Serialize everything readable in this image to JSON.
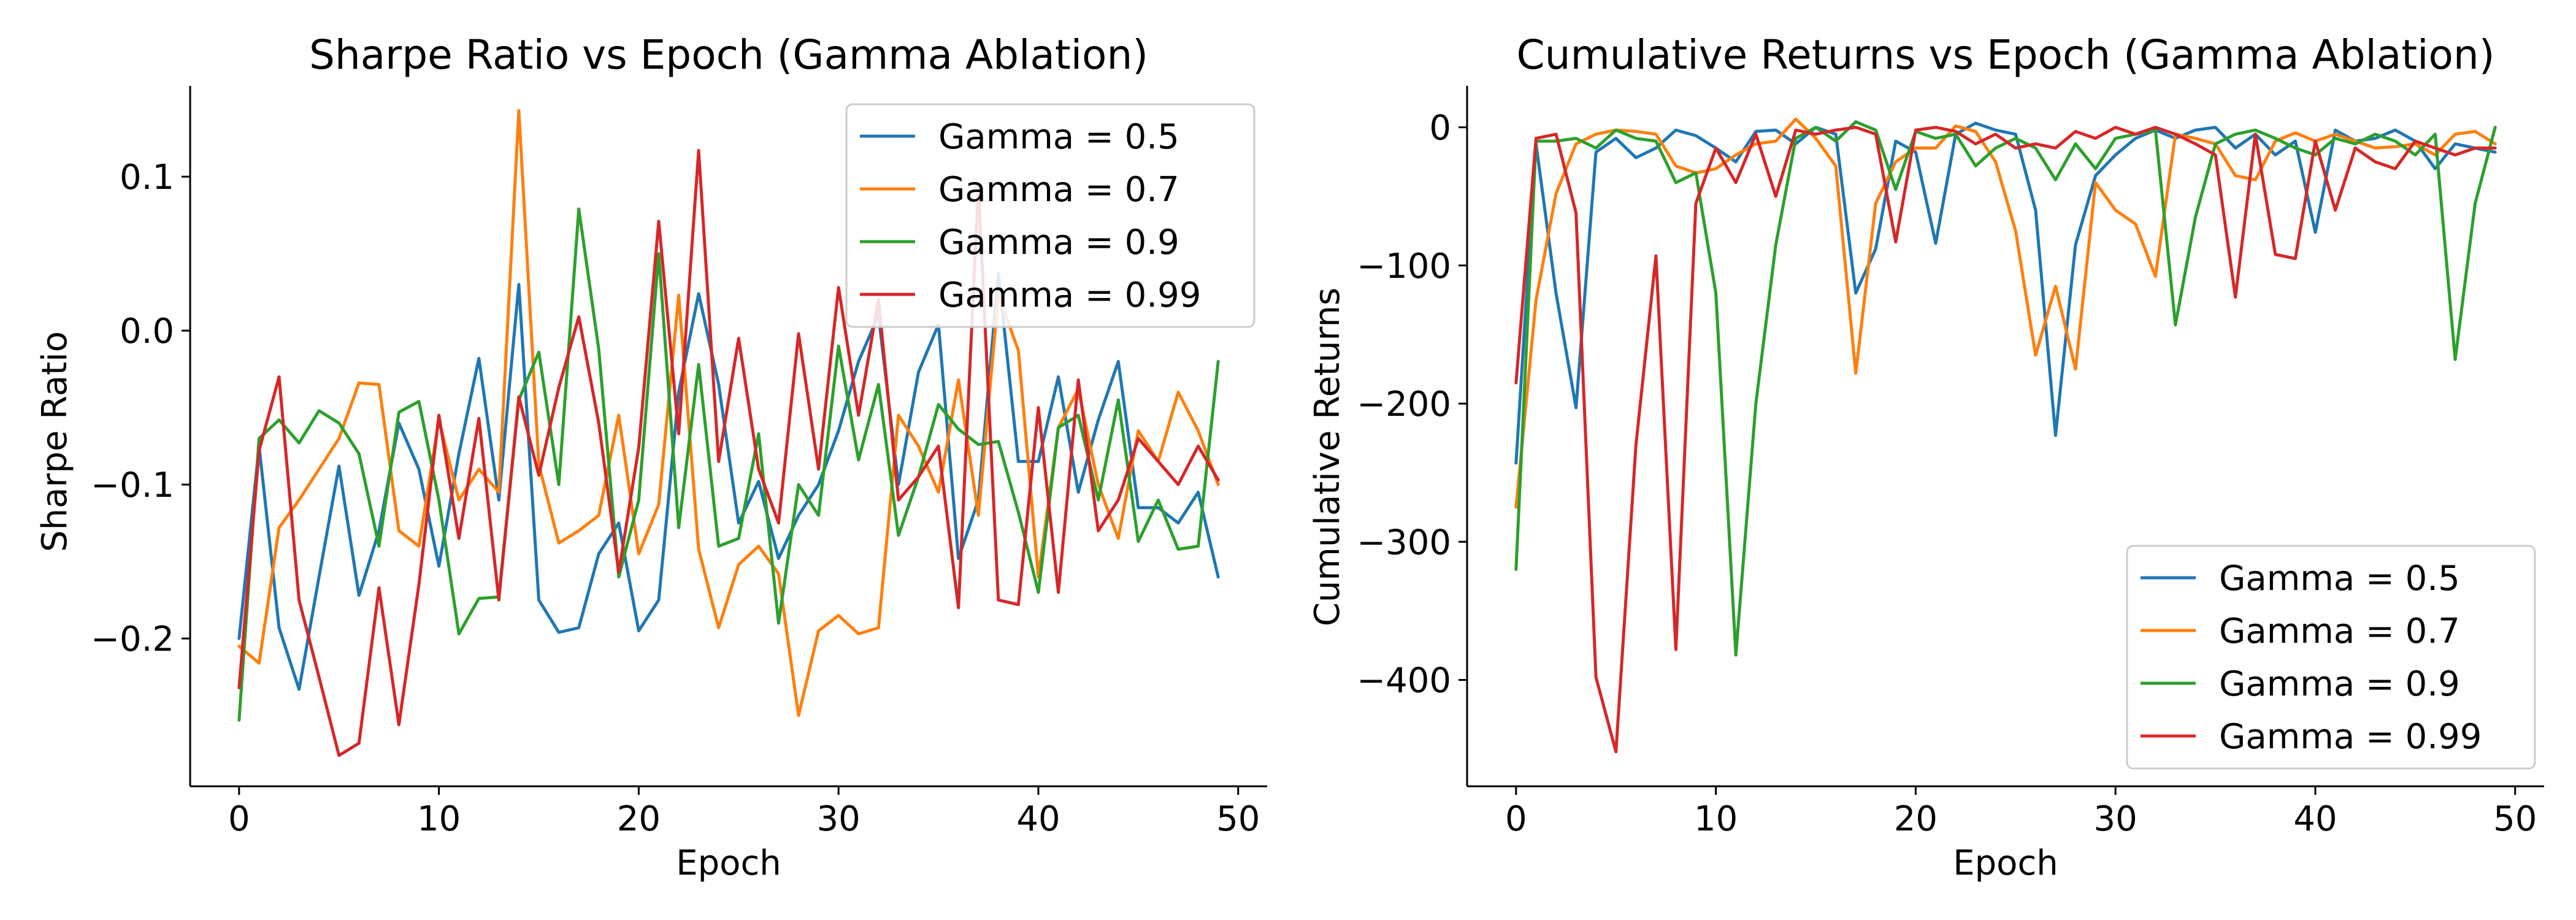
{
  "chart_data": [
    {
      "type": "line",
      "title": "Sharpe Ratio vs Epoch (Gamma Ablation)",
      "xlabel": "Epoch",
      "ylabel": "Sharpe Ratio",
      "xlim": [
        -2.45,
        51.45
      ],
      "ylim": [
        -0.296,
        0.159
      ],
      "xticks": [
        0,
        10,
        20,
        30,
        40,
        50
      ],
      "xtick_labels": [
        "0",
        "10",
        "20",
        "30",
        "40",
        "50"
      ],
      "yticks": [
        -0.2,
        -0.1,
        0.0,
        0.1
      ],
      "ytick_labels": [
        "−0.2",
        "−0.1",
        "0.0",
        "0.1"
      ],
      "legend_position": "upper right",
      "x": [
        0,
        1,
        2,
        3,
        4,
        5,
        6,
        7,
        8,
        9,
        10,
        11,
        12,
        13,
        14,
        15,
        16,
        17,
        18,
        19,
        20,
        21,
        22,
        23,
        24,
        25,
        26,
        27,
        28,
        29,
        30,
        31,
        32,
        33,
        34,
        35,
        36,
        37,
        38,
        39,
        40,
        41,
        42,
        43,
        44,
        45,
        46,
        47,
        48,
        49
      ],
      "series": [
        {
          "name": "Gamma = 0.5",
          "color": "#1f77b4",
          "values": [
            -0.2,
            -0.075,
            -0.193,
            -0.233,
            -0.16,
            -0.088,
            -0.172,
            -0.13,
            -0.06,
            -0.09,
            -0.153,
            -0.08,
            -0.018,
            -0.11,
            0.03,
            -0.175,
            -0.196,
            -0.193,
            -0.145,
            -0.125,
            -0.195,
            -0.175,
            -0.04,
            0.024,
            -0.035,
            -0.125,
            -0.098,
            -0.148,
            -0.12,
            -0.1,
            -0.065,
            -0.02,
            0.01,
            -0.1,
            -0.027,
            0.004,
            -0.148,
            -0.11,
            0.037,
            -0.085,
            -0.085,
            -0.03,
            -0.105,
            -0.058,
            -0.02,
            -0.115,
            -0.115,
            -0.125,
            -0.105,
            -0.16
          ]
        },
        {
          "name": "Gamma = 0.7",
          "color": "#ff7f0e",
          "values": [
            -0.205,
            -0.216,
            -0.128,
            -0.11,
            -0.09,
            -0.07,
            -0.034,
            -0.035,
            -0.13,
            -0.14,
            -0.058,
            -0.11,
            -0.09,
            -0.105,
            0.143,
            -0.087,
            -0.138,
            -0.13,
            -0.12,
            -0.055,
            -0.145,
            -0.113,
            0.023,
            -0.142,
            -0.193,
            -0.152,
            -0.14,
            -0.158,
            -0.25,
            -0.195,
            -0.185,
            -0.197,
            -0.193,
            -0.055,
            -0.075,
            -0.105,
            -0.032,
            -0.12,
            0.023,
            -0.013,
            -0.16,
            -0.063,
            -0.038,
            -0.1,
            -0.135,
            -0.065,
            -0.085,
            -0.04,
            -0.065,
            -0.1
          ]
        },
        {
          "name": "Gamma = 0.9",
          "color": "#2ca02c",
          "values": [
            -0.253,
            -0.07,
            -0.058,
            -0.073,
            -0.052,
            -0.06,
            -0.08,
            -0.14,
            -0.053,
            -0.046,
            -0.11,
            -0.197,
            -0.174,
            -0.173,
            -0.045,
            -0.014,
            -0.1,
            0.079,
            -0.012,
            -0.16,
            -0.11,
            0.05,
            -0.128,
            -0.022,
            -0.14,
            -0.135,
            -0.067,
            -0.19,
            -0.1,
            -0.12,
            -0.01,
            -0.084,
            -0.035,
            -0.133,
            -0.095,
            -0.048,
            -0.064,
            -0.074,
            -0.072,
            -0.118,
            -0.17,
            -0.063,
            -0.055,
            -0.11,
            -0.045,
            -0.137,
            -0.11,
            -0.142,
            -0.14,
            -0.02
          ]
        },
        {
          "name": "Gamma = 0.99",
          "color": "#d62728",
          "values": [
            -0.232,
            -0.078,
            -0.03,
            -0.175,
            -0.225,
            -0.276,
            -0.268,
            -0.167,
            -0.256,
            -0.165,
            -0.055,
            -0.135,
            -0.057,
            -0.175,
            -0.043,
            -0.094,
            -0.037,
            0.009,
            -0.06,
            -0.157,
            -0.076,
            0.071,
            -0.067,
            0.117,
            -0.085,
            -0.005,
            -0.09,
            -0.125,
            -0.002,
            -0.09,
            0.028,
            -0.055,
            0.02,
            -0.11,
            -0.095,
            -0.075,
            -0.18,
            0.093,
            -0.175,
            -0.178,
            -0.05,
            -0.17,
            -0.032,
            -0.13,
            -0.11,
            -0.07,
            -0.085,
            -0.1,
            -0.075,
            -0.097
          ]
        }
      ]
    },
    {
      "type": "line",
      "title": "Cumulative Returns vs Epoch (Gamma Ablation)",
      "xlabel": "Epoch",
      "ylabel": "Cumulative Returns",
      "xlim": [
        -2.45,
        51.45
      ],
      "ylim": [
        -477,
        30
      ],
      "xticks": [
        0,
        10,
        20,
        30,
        40,
        50
      ],
      "xtick_labels": [
        "0",
        "10",
        "20",
        "30",
        "40",
        "50"
      ],
      "yticks": [
        -400,
        -300,
        -200,
        -100,
        0
      ],
      "ytick_labels": [
        "−400",
        "−300",
        "−200",
        "−100",
        "0"
      ],
      "legend_position": "lower right",
      "x": [
        0,
        1,
        2,
        3,
        4,
        5,
        6,
        7,
        8,
        9,
        10,
        11,
        12,
        13,
        14,
        15,
        16,
        17,
        18,
        19,
        20,
        21,
        22,
        23,
        24,
        25,
        26,
        27,
        28,
        29,
        30,
        31,
        32,
        33,
        34,
        35,
        36,
        37,
        38,
        39,
        40,
        41,
        42,
        43,
        44,
        45,
        46,
        47,
        48,
        49
      ],
      "series": [
        {
          "name": "Gamma = 0.5",
          "color": "#1f77b4",
          "values": [
            -243,
            -12,
            -120,
            -203,
            -18,
            -8,
            -22,
            -15,
            -2,
            -6,
            -15,
            -25,
            -3,
            -2,
            -12,
            0,
            -5,
            -120,
            -88,
            -10,
            -18,
            -84,
            -5,
            3,
            -2,
            -5,
            -60,
            -223,
            -85,
            -35,
            -20,
            -8,
            -2,
            -8,
            -2,
            0,
            -15,
            -5,
            -20,
            -10,
            -76,
            -2,
            -10,
            -8,
            -2,
            -10,
            -30,
            -12,
            -15,
            -18
          ]
        },
        {
          "name": "Gamma = 0.7",
          "color": "#ff7f0e",
          "values": [
            -275,
            -125,
            -48,
            -12,
            -5,
            -2,
            -3,
            -5,
            -28,
            -33,
            -30,
            -20,
            -12,
            -10,
            6,
            -8,
            -28,
            -178,
            -55,
            -25,
            -15,
            -15,
            1,
            -3,
            -25,
            -75,
            -165,
            -115,
            -175,
            -40,
            -60,
            -70,
            -108,
            -5,
            -8,
            -12,
            -35,
            -38,
            -10,
            -4,
            -10,
            -5,
            -10,
            -15,
            -14,
            -12,
            -20,
            -5,
            -3,
            -12
          ]
        },
        {
          "name": "Gamma = 0.9",
          "color": "#2ca02c",
          "values": [
            -320,
            -10,
            -10,
            -8,
            -15,
            -2,
            -8,
            -10,
            -40,
            -33,
            -120,
            -382,
            -200,
            -85,
            -8,
            0,
            -10,
            4,
            -2,
            -45,
            -3,
            -8,
            -5,
            -28,
            -15,
            -8,
            -15,
            -38,
            -12,
            -30,
            -8,
            -5,
            -2,
            -143,
            -65,
            -12,
            -5,
            -2,
            -8,
            -15,
            -20,
            -8,
            -12,
            -5,
            -10,
            -20,
            -5,
            -168,
            -55,
            0
          ]
        },
        {
          "name": "Gamma = 0.99",
          "color": "#d62728",
          "values": [
            -185,
            -8,
            -5,
            -62,
            -398,
            -452,
            -230,
            -93,
            -378,
            -55,
            -15,
            -40,
            -5,
            -50,
            -2,
            -5,
            -2,
            0,
            -5,
            -83,
            -2,
            0,
            -3,
            -12,
            -5,
            -15,
            -12,
            -15,
            -3,
            -8,
            0,
            -5,
            0,
            -5,
            -12,
            -20,
            -123,
            -5,
            -92,
            -95,
            -10,
            -60,
            -15,
            -25,
            -30,
            -10,
            -15,
            -20,
            -15,
            -15
          ]
        }
      ]
    }
  ]
}
